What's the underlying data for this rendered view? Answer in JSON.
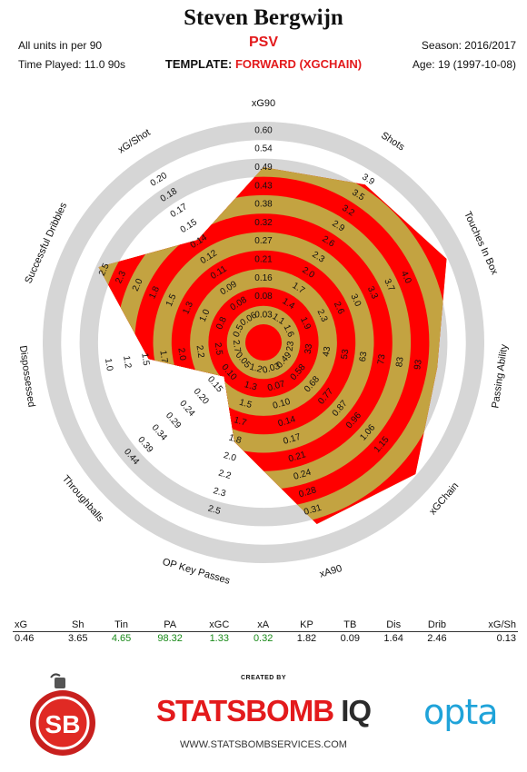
{
  "header": {
    "player_name": "Steven Bergwijn",
    "units_note": "All units in per 90",
    "time_played": "Time Played: 11.0 90s",
    "team": "PSV",
    "template_label": "TEMPLATE:",
    "template_value": "FORWARD (XGCHAIN)",
    "season": "Season: 2016/2017",
    "age": "Age: 19 (1997-10-08)"
  },
  "colors": {
    "ring_red": "#ff0000",
    "ring_gold": "#c3a341",
    "track_gray": "#d6d6d6",
    "accent": "#e31a1c",
    "green_value": "#1a8a1a"
  },
  "chart_data": {
    "type": "radar",
    "axes": [
      {
        "name": "xG90",
        "value": 0.46,
        "ticks": [
          "0.03",
          "0.08",
          "0.16",
          "0.21",
          "0.27",
          "0.32",
          "0.38",
          "0.43",
          "0.49",
          "0.54",
          "0.60"
        ]
      },
      {
        "name": "Shots",
        "value": 3.65,
        "ticks": [
          "1.1",
          "1.4",
          "1.7",
          "2.0",
          "2.3",
          "2.6",
          "2.9",
          "3.2",
          "3.5",
          "3.9"
        ]
      },
      {
        "name": "Touches In Box",
        "value": 4.65,
        "ticks": [
          "1.6",
          "1.9",
          "2.3",
          "2.6",
          "3.0",
          "3.3",
          "3.7",
          "4.0"
        ]
      },
      {
        "name": "Passing Ability",
        "value": 98.32,
        "ticks": [
          "23",
          "33",
          "43",
          "53",
          "63",
          "73",
          "83",
          "93"
        ]
      },
      {
        "name": "xGChain",
        "value": 1.33,
        "ticks": [
          "0.49",
          "0.58",
          "0.68",
          "0.77",
          "0.87",
          "0.96",
          "1.06",
          "1.15"
        ]
      },
      {
        "name": "xA90",
        "value": 0.32,
        "ticks": [
          "0.03",
          "0.07",
          "0.10",
          "0.14",
          "0.17",
          "0.21",
          "0.24",
          "0.28",
          "0.31"
        ]
      },
      {
        "name": "OP Key Passes",
        "value": 1.82,
        "ticks": [
          "1.2",
          "1.3",
          "1.5",
          "1.7",
          "1.8",
          "2.0",
          "2.2",
          "2.3",
          "2.5"
        ]
      },
      {
        "name": "Throughballs",
        "value": 0.09,
        "ticks": [
          "0.05",
          "0.10",
          "0.15",
          "0.20",
          "0.24",
          "0.29",
          "0.34",
          "0.39",
          "0.44"
        ]
      },
      {
        "name": "Dispossessed",
        "value": 1.64,
        "ticks": [
          "2.7",
          "2.5",
          "2.2",
          "2.0",
          "1.7",
          "1.5",
          "1.2",
          "1.0"
        ]
      },
      {
        "name": "Successful Dribbles",
        "value": 2.46,
        "ticks": [
          "0.5",
          "0.8",
          "1.0",
          "1.3",
          "1.5",
          "1.8",
          "2.0",
          "2.3",
          "2.5"
        ]
      },
      {
        "name": "xG/Shot",
        "value": 0.13,
        "ticks": [
          "0.06",
          "0.08",
          "0.09",
          "0.11",
          "0.12",
          "0.14",
          "0.15",
          "0.17",
          "0.18",
          "0.20"
        ]
      }
    ]
  },
  "stats_table": {
    "headers": [
      "xG",
      "Sh",
      "Tin",
      "PA",
      "xGC",
      "xA",
      "KP",
      "TB",
      "Dis",
      "Drib",
      "xG/Sh"
    ],
    "values": [
      "0.46",
      "3.65",
      "4.65",
      "98.32",
      "1.33",
      "0.32",
      "1.82",
      "0.09",
      "1.64",
      "2.46",
      "0.13"
    ],
    "highlight": [
      false,
      false,
      true,
      true,
      true,
      true,
      false,
      false,
      false,
      false,
      false
    ]
  },
  "footer": {
    "created_by": "CREATED BY",
    "brand_main": "STATSBOMB",
    "brand_suffix": "IQ",
    "website": "WWW.STATSBOMBSERVICES.COM",
    "sb_logo": "SB",
    "opta_logo": "opta"
  }
}
